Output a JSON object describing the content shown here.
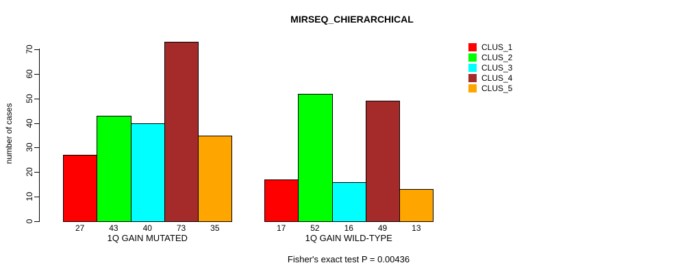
{
  "chart_data": {
    "type": "bar",
    "title": "MIRSEQ_CHIERARCHICAL",
    "ylabel": "number of cases",
    "xlabel": "",
    "ylim": [
      0,
      70
    ],
    "yticks": [
      0,
      10,
      20,
      30,
      40,
      50,
      60,
      70
    ],
    "grid": false,
    "legend_position": "right-outside",
    "categories": [
      "1Q GAIN MUTATED",
      "1Q GAIN WILD-TYPE"
    ],
    "series": [
      {
        "name": "CLUS_1",
        "color": "#FF0000",
        "values": [
          27,
          17
        ]
      },
      {
        "name": "CLUS_2",
        "color": "#00FF00",
        "values": [
          43,
          52
        ]
      },
      {
        "name": "CLUS_3",
        "color": "#00FFFF",
        "values": [
          40,
          16
        ]
      },
      {
        "name": "CLUS_4",
        "color": "#A52A2A",
        "values": [
          73,
          49
        ]
      },
      {
        "name": "CLUS_5",
        "color": "#FFA500",
        "values": [
          35,
          13
        ]
      }
    ],
    "bar_value_labels": {
      "1Q GAIN MUTATED": [
        27,
        43,
        40,
        73,
        35
      ],
      "1Q GAIN WILD-TYPE": [
        17,
        52,
        16,
        49,
        13
      ]
    },
    "annotation": "Fisher's exact test P = 0.00436"
  }
}
